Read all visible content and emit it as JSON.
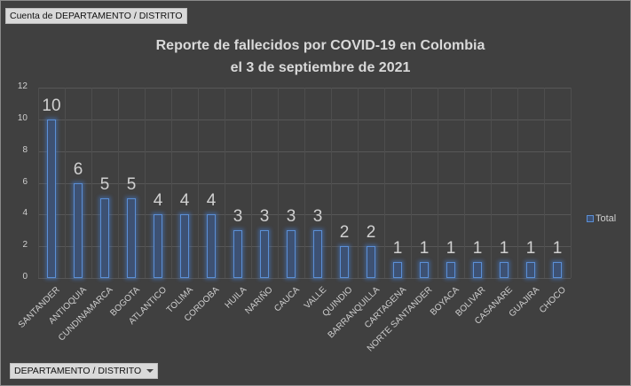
{
  "pivot": {
    "value_field_button": "Cuenta de DEPARTAMENTO / DISTRITO",
    "axis_field_button": "DEPARTAMENTO / DISTRITO"
  },
  "chart_data": {
    "type": "bar",
    "title": "Reporte de fallecidos por COVID-19 en Colombia el 3 de septiembre de 2021",
    "title_lines": [
      "Reporte de fallecidos por COVID-19 en Colombia",
      "el 3 de septiembre de 2021"
    ],
    "categories": [
      "SANTANDER",
      "ANTIOQUIA",
      "CUNDINAMARCA",
      "BOGOTA",
      "ATLANTICO",
      "TOLIMA",
      "CORDOBA",
      "HUILA",
      "NARIÑO",
      "CAUCA",
      "VALLE",
      "QUINDIO",
      "BARRANQUILLA",
      "CARTAGENA",
      "NORTE SANTANDER",
      "BOYACA",
      "BOLIVAR",
      "CASANARE",
      "GUAJIRA",
      "CHOCO"
    ],
    "series": [
      {
        "name": "Total",
        "values": [
          10,
          6,
          5,
          5,
          4,
          4,
          4,
          3,
          3,
          3,
          3,
          2,
          2,
          1,
          1,
          1,
          1,
          1,
          1,
          1
        ]
      }
    ],
    "yticks": [
      "0",
      "2",
      "4",
      "6",
      "8",
      "10",
      "12"
    ],
    "ylim": [
      0,
      12
    ],
    "xlabel": "",
    "ylabel": "",
    "grid": true,
    "legend_position": "right",
    "data_labels": true,
    "colors": {
      "bar_fill": "#3d5173",
      "bar_border": "#5b8fd6",
      "background": "#404040"
    }
  }
}
